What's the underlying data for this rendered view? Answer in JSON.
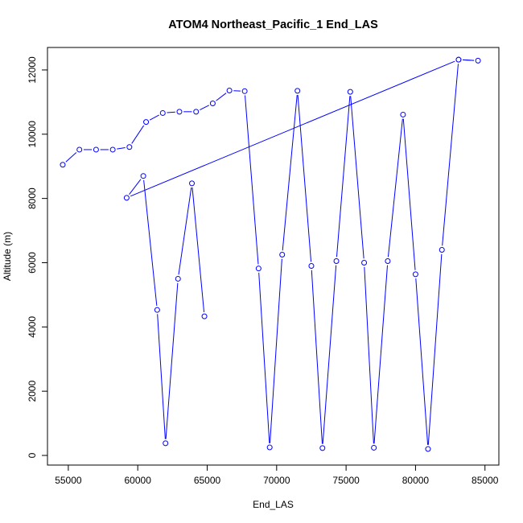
{
  "chart_data": {
    "type": "line",
    "title": "ATOM4 Northeast_Pacific_1 End_LAS",
    "xlabel": "End_LAS",
    "ylabel": "Altitude (m)",
    "xlim": [
      53500,
      86000
    ],
    "ylim": [
      -300,
      12700
    ],
    "x_ticks": [
      55000,
      60000,
      65000,
      70000,
      75000,
      80000,
      85000
    ],
    "x_tick_labels": [
      "55000",
      "60000",
      "65000",
      "70000",
      "75000",
      "80000",
      "85000"
    ],
    "y_ticks": [
      0,
      2000,
      4000,
      6000,
      8000,
      10000,
      12000
    ],
    "y_tick_labels": [
      "0",
      "2000",
      "4000",
      "6000",
      "8000",
      "10000",
      "12000"
    ],
    "grid": false,
    "legend": "none",
    "series_color": "#0000ff",
    "series": [
      {
        "x": [
          54600,
          55800,
          57000,
          58200,
          59400,
          60600,
          61800,
          63000,
          64200,
          65400,
          66600,
          67700,
          68700,
          69500,
          70400,
          71500,
          72500,
          73300,
          74300,
          75300,
          76300,
          77000,
          78000,
          79100,
          80000,
          80900,
          81900,
          83100,
          84500,
          83100,
          59200,
          60400,
          61400,
          62000,
          62900,
          63900,
          64800
        ],
        "y": [
          9050,
          9520,
          9520,
          9520,
          9600,
          10380,
          10660,
          10700,
          10700,
          10960,
          11360,
          11340,
          5820,
          250,
          6250,
          11350,
          5900,
          230,
          6050,
          11320,
          6000,
          240,
          6050,
          10610,
          5640,
          200,
          6400,
          12320,
          12290,
          12320,
          8020,
          8700,
          4530,
          380,
          5500,
          8470,
          4330
        ]
      }
    ]
  }
}
